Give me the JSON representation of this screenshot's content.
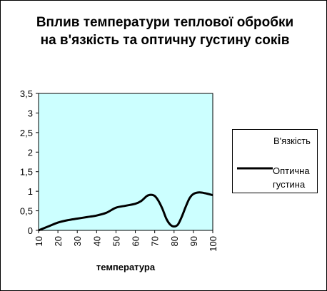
{
  "chart_data": {
    "type": "line",
    "title": "Вплив температури теплової обробки на в'язкість та оптичну густину соків",
    "xlabel": "температура",
    "ylabel": "",
    "x_ticks": [
      "10",
      "20",
      "30",
      "40",
      "50",
      "60",
      "70",
      "80",
      "90",
      "100"
    ],
    "y_ticks": [
      "0",
      "0,5",
      "1",
      "1,5",
      "2",
      "2,5",
      "3",
      "3,5"
    ],
    "xlim": [
      10,
      100
    ],
    "ylim": [
      0,
      3.5
    ],
    "plot_background": "#ccffff",
    "grid": false,
    "legend_position": "right",
    "series": [
      {
        "name": "В'язкість",
        "color": "#ffffff",
        "x": [],
        "y": []
      },
      {
        "name": "Оптична густина",
        "color": "#000000",
        "x": [
          10,
          15,
          20,
          25,
          30,
          35,
          40,
          45,
          50,
          55,
          60,
          63,
          66,
          68,
          70,
          72,
          74,
          76,
          78,
          80,
          82,
          84,
          86,
          88,
          90,
          93,
          96,
          100
        ],
        "y": [
          0.0,
          0.1,
          0.2,
          0.26,
          0.3,
          0.34,
          0.38,
          0.45,
          0.58,
          0.63,
          0.68,
          0.75,
          0.88,
          0.91,
          0.88,
          0.75,
          0.55,
          0.3,
          0.15,
          0.1,
          0.15,
          0.35,
          0.6,
          0.82,
          0.93,
          0.97,
          0.95,
          0.9
        ]
      }
    ]
  }
}
